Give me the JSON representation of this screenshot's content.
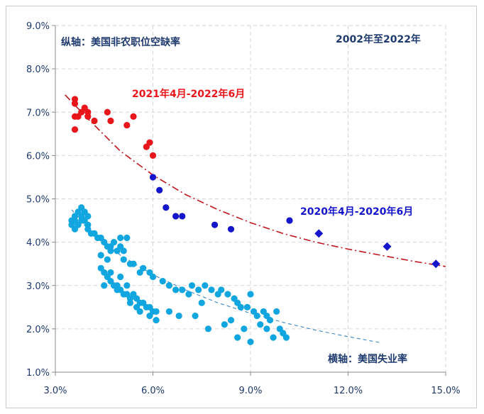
{
  "chart_data": {
    "type": "scatter",
    "title": "2002年至2022年",
    "xlabel": "横轴：美国失业率",
    "ylabel": "纵轴：美国非农职位空缺率",
    "xlim": [
      3.0,
      15.0
    ],
    "ylim": [
      1.0,
      9.0
    ],
    "x_ticks": [
      "3.0%",
      "6.0%",
      "9.0%",
      "12.0%",
      "15.0%"
    ],
    "y_ticks": [
      "1.0%",
      "2.0%",
      "3.0%",
      "4.0%",
      "5.0%",
      "6.0%",
      "7.0%",
      "8.0%",
      "9.0%"
    ],
    "grid": true,
    "annotations": {
      "red_period": "2021年4月-2022年6月",
      "blue_period": "2020年4月-2020年6月"
    },
    "colors": {
      "red": "#e8151b",
      "blue": "#1515cc",
      "cyan": "#11a6e0",
      "axis_text": "#1f3a6e",
      "red_trend": "#c0161c",
      "cyan_trend": "#3d86c6"
    },
    "series": [
      {
        "marker": "circle",
        "color": "#e8151b",
        "points": [
          [
            3.6,
            7.3
          ],
          [
            3.6,
            7.2
          ],
          [
            3.6,
            6.9
          ],
          [
            3.6,
            6.6
          ],
          [
            3.7,
            6.9
          ],
          [
            3.8,
            7.0
          ],
          [
            3.9,
            7.1
          ],
          [
            4.0,
            7.0
          ],
          [
            4.0,
            6.9
          ],
          [
            4.2,
            6.8
          ],
          [
            4.6,
            7.0
          ],
          [
            4.7,
            6.8
          ],
          [
            5.2,
            6.7
          ],
          [
            5.4,
            6.9
          ],
          [
            5.8,
            6.2
          ],
          [
            5.9,
            6.3
          ],
          [
            6.0,
            6.0
          ]
        ]
      },
      {
        "marker": "circle",
        "color": "#1515cc",
        "points": [
          [
            6.0,
            5.5
          ],
          [
            6.2,
            5.2
          ],
          [
            6.4,
            4.8
          ],
          [
            6.7,
            4.6
          ],
          [
            6.9,
            4.6
          ],
          [
            7.9,
            4.4
          ],
          [
            8.4,
            4.3
          ],
          [
            10.2,
            4.5
          ]
        ]
      },
      {
        "marker": "diamond",
        "color": "#1515cc",
        "points": [
          [
            11.1,
            4.2
          ],
          [
            13.2,
            3.9
          ],
          [
            14.7,
            3.5
          ]
        ]
      },
      {
        "marker": "circle",
        "color": "#11a6e0",
        "points": [
          [
            3.5,
            4.5
          ],
          [
            3.5,
            4.4
          ],
          [
            3.6,
            4.6
          ],
          [
            3.6,
            4.3
          ],
          [
            3.6,
            4.5
          ],
          [
            3.7,
            4.7
          ],
          [
            3.7,
            4.4
          ],
          [
            3.8,
            4.8
          ],
          [
            3.8,
            4.6
          ],
          [
            3.8,
            4.5
          ],
          [
            3.9,
            4.7
          ],
          [
            3.9,
            4.5
          ],
          [
            4.0,
            4.6
          ],
          [
            4.0,
            4.4
          ],
          [
            4.0,
            4.3
          ],
          [
            4.1,
            4.2
          ],
          [
            4.2,
            4.2
          ],
          [
            4.3,
            4.1
          ],
          [
            4.4,
            4.1
          ],
          [
            4.5,
            4.0
          ],
          [
            4.6,
            3.9
          ],
          [
            4.7,
            3.9
          ],
          [
            4.7,
            3.8
          ],
          [
            4.8,
            4.0
          ],
          [
            4.9,
            3.8
          ],
          [
            5.0,
            3.9
          ],
          [
            5.1,
            3.8
          ],
          [
            5.0,
            4.1
          ],
          [
            5.2,
            4.1
          ],
          [
            5.1,
            3.6
          ],
          [
            5.3,
            3.5
          ],
          [
            5.4,
            3.5
          ],
          [
            5.6,
            3.3
          ],
          [
            5.7,
            3.4
          ],
          [
            5.9,
            3.3
          ],
          [
            6.0,
            3.2
          ],
          [
            6.3,
            3.1
          ],
          [
            6.5,
            3.0
          ],
          [
            4.4,
            3.4
          ],
          [
            4.5,
            3.3
          ],
          [
            4.6,
            3.2
          ],
          [
            4.7,
            3.1
          ],
          [
            4.8,
            3.0
          ],
          [
            4.9,
            2.9
          ],
          [
            5.0,
            2.9
          ],
          [
            5.1,
            2.8
          ],
          [
            5.2,
            2.8
          ],
          [
            5.3,
            2.7
          ],
          [
            5.4,
            2.8
          ],
          [
            5.5,
            2.7
          ],
          [
            5.6,
            2.6
          ],
          [
            5.7,
            2.6
          ],
          [
            5.8,
            2.5
          ],
          [
            5.9,
            2.5
          ],
          [
            6.0,
            2.4
          ],
          [
            6.1,
            2.4
          ],
          [
            5.6,
            2.4
          ],
          [
            5.9,
            2.3
          ],
          [
            6.1,
            2.2
          ],
          [
            5.3,
            2.6
          ],
          [
            5.5,
            2.5
          ],
          [
            4.5,
            3.0
          ],
          [
            4.7,
            3.3
          ],
          [
            4.9,
            3.0
          ],
          [
            5.0,
            3.2
          ],
          [
            5.2,
            3.0
          ],
          [
            4.4,
            3.7
          ],
          [
            4.6,
            3.6
          ],
          [
            6.7,
            2.9
          ],
          [
            6.9,
            2.9
          ],
          [
            7.2,
            3.0
          ],
          [
            7.4,
            2.9
          ],
          [
            7.6,
            3.0
          ],
          [
            7.8,
            2.9
          ],
          [
            8.0,
            2.8
          ],
          [
            8.1,
            2.9
          ],
          [
            8.3,
            2.8
          ],
          [
            8.5,
            2.7
          ],
          [
            8.6,
            2.6
          ],
          [
            8.7,
            2.5
          ],
          [
            8.9,
            2.5
          ],
          [
            9.1,
            2.4
          ],
          [
            9.2,
            2.3
          ],
          [
            9.4,
            2.4
          ],
          [
            9.5,
            2.3
          ],
          [
            9.6,
            2.2
          ],
          [
            9.8,
            2.4
          ],
          [
            9.9,
            2.0
          ],
          [
            10.0,
            1.9
          ],
          [
            10.1,
            1.8
          ],
          [
            9.5,
            2.0
          ],
          [
            9.7,
            1.8
          ],
          [
            9.3,
            2.1
          ],
          [
            9.0,
            1.7
          ],
          [
            7.7,
            2.0
          ],
          [
            8.2,
            2.1
          ],
          [
            8.6,
            1.8
          ],
          [
            6.8,
            2.3
          ],
          [
            7.3,
            2.3
          ],
          [
            6.5,
            2.4
          ],
          [
            7.1,
            2.8
          ],
          [
            7.5,
            2.6
          ],
          [
            8.4,
            2.2
          ],
          [
            9.0,
            2.8
          ],
          [
            8.8,
            2.0
          ]
        ]
      }
    ],
    "trendlines": [
      {
        "style": "dash-dot",
        "color": "#c0161c",
        "points": [
          [
            3.3,
            7.4
          ],
          [
            4.0,
            6.85
          ],
          [
            5.0,
            6.1
          ],
          [
            6.0,
            5.55
          ],
          [
            7.0,
            5.1
          ],
          [
            8.0,
            4.75
          ],
          [
            9.0,
            4.45
          ],
          [
            10.0,
            4.2
          ],
          [
            11.0,
            4.0
          ],
          [
            12.0,
            3.84
          ],
          [
            13.0,
            3.7
          ],
          [
            14.0,
            3.56
          ],
          [
            15.0,
            3.44
          ]
        ]
      },
      {
        "style": "dash",
        "color": "#3d86c6",
        "points": [
          [
            3.5,
            4.75
          ],
          [
            4.0,
            4.3
          ],
          [
            5.0,
            3.7
          ],
          [
            6.0,
            3.25
          ],
          [
            7.0,
            2.9
          ],
          [
            8.0,
            2.6
          ],
          [
            9.0,
            2.36
          ],
          [
            10.0,
            2.15
          ],
          [
            11.0,
            1.97
          ],
          [
            12.0,
            1.82
          ],
          [
            13.0,
            1.68
          ]
        ]
      }
    ]
  }
}
